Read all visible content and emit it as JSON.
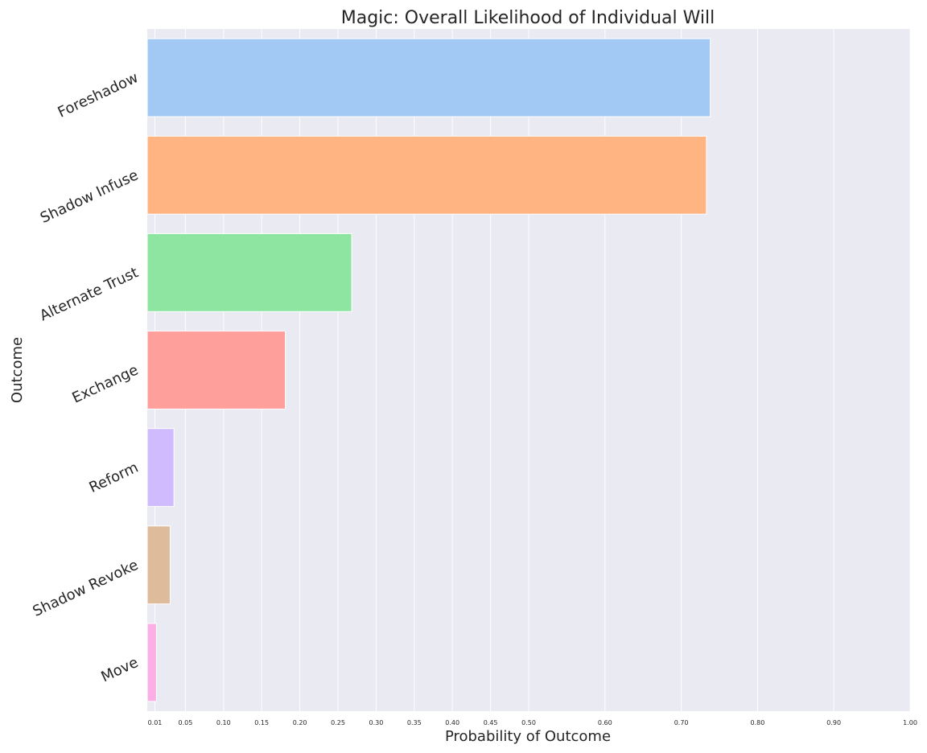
{
  "chart_data": {
    "type": "bar",
    "orientation": "horizontal",
    "title": "Magic: Overall Likelihood of Individual Will",
    "xlabel": "Probability of Outcome",
    "ylabel": "Outcome",
    "xlim": [
      0,
      1
    ],
    "x_ticks": [
      0.01,
      0.05,
      0.1,
      0.15,
      0.2,
      0.25,
      0.3,
      0.35,
      0.4,
      0.45,
      0.5,
      0.6,
      0.7,
      0.8,
      0.9,
      1.0
    ],
    "x_tick_labels": [
      "0.01",
      "0.05",
      "0.10",
      "0.15",
      "0.20",
      "0.25",
      "0.30",
      "0.35",
      "0.40",
      "0.45",
      "0.50",
      "0.60",
      "0.70",
      "0.80",
      "0.90",
      "1.00"
    ],
    "grid": true,
    "background": "#eaeaf2",
    "categories": [
      "Foreshadow",
      "Shadow Infuse",
      "Alternate Trust",
      "Exchange",
      "Reform",
      "Shadow Revoke",
      "Move"
    ],
    "values": [
      0.738,
      0.733,
      0.268,
      0.181,
      0.035,
      0.03,
      0.012
    ],
    "colors": [
      "#a1c9f4",
      "#ffb482",
      "#8de5a1",
      "#ff9f9b",
      "#d0bbff",
      "#debb9b",
      "#fab0e4"
    ]
  }
}
